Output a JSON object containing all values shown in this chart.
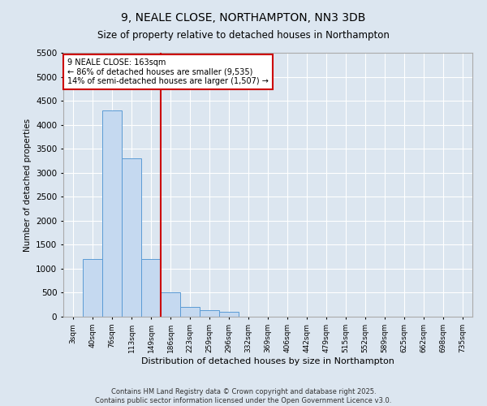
{
  "title": "9, NEALE CLOSE, NORTHAMPTON, NN3 3DB",
  "subtitle": "Size of property relative to detached houses in Northampton",
  "xlabel": "Distribution of detached houses by size in Northampton",
  "ylabel": "Number of detached properties",
  "bar_labels": [
    "3sqm",
    "40sqm",
    "76sqm",
    "113sqm",
    "149sqm",
    "186sqm",
    "223sqm",
    "259sqm",
    "296sqm",
    "332sqm",
    "369sqm",
    "406sqm",
    "442sqm",
    "479sqm",
    "515sqm",
    "552sqm",
    "589sqm",
    "625sqm",
    "662sqm",
    "698sqm",
    "735sqm"
  ],
  "bar_values": [
    0,
    1200,
    4300,
    3300,
    1200,
    500,
    200,
    130,
    100,
    0,
    0,
    0,
    0,
    0,
    0,
    0,
    0,
    0,
    0,
    0,
    0
  ],
  "bar_color": "#c5d9f0",
  "bar_edge_color": "#5b9bd5",
  "annotation_line1": "9 NEALE CLOSE: 163sqm",
  "annotation_line2": "← 86% of detached houses are smaller (9,535)",
  "annotation_line3": "14% of semi-detached houses are larger (1,507) →",
  "annotation_box_color": "#ffffff",
  "annotation_box_edge": "#cc0000",
  "vline_color": "#cc0000",
  "vline_x": 4.5,
  "ylim_max": 5500,
  "yticks": [
    0,
    500,
    1000,
    1500,
    2000,
    2500,
    3000,
    3500,
    4000,
    4500,
    5000,
    5500
  ],
  "footer1": "Contains HM Land Registry data © Crown copyright and database right 2025.",
  "footer2": "Contains public sector information licensed under the Open Government Licence v3.0.",
  "bg_color": "#dce6f0",
  "plot_bg_color": "#dce6f0"
}
